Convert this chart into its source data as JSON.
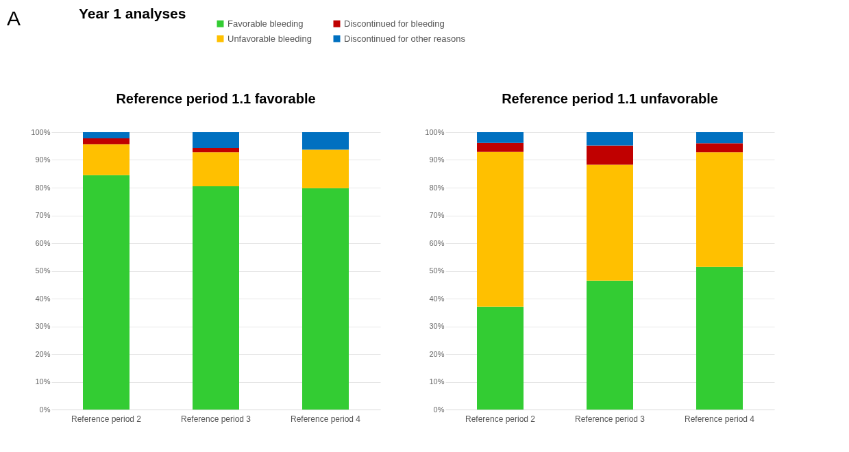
{
  "chart_data": [
    {
      "type": "bar",
      "title": "Reference period 1.1 favorable",
      "annotations": [
        "A",
        "Year 1 analyses"
      ],
      "stacked": true,
      "legend": "top",
      "grid": "y",
      "categories": [
        "Reference period 2",
        "Reference period 3",
        "Reference period 4"
      ],
      "ylim": [
        0,
        100
      ],
      "yticks": [
        {
          "value": 0,
          "label": "0%"
        },
        {
          "value": 10,
          "label": "10%"
        },
        {
          "value": 20,
          "label": "20%"
        },
        {
          "value": 30,
          "label": "30%"
        },
        {
          "value": 40,
          "label": "40%"
        },
        {
          "value": 50,
          "label": "50%"
        },
        {
          "value": 60,
          "label": "60%"
        },
        {
          "value": 70,
          "label": "70%"
        },
        {
          "value": 80,
          "label": "80%"
        },
        {
          "value": 90,
          "label": "90%"
        },
        {
          "value": 100,
          "label": "100%"
        }
      ],
      "series": [
        {
          "name": "Favorable bleeding",
          "color": "#33cc33",
          "values": [
            84.5,
            80.5,
            79.8
          ]
        },
        {
          "name": "Unfavorable bleeding",
          "color": "#ffc000",
          "values": [
            11.2,
            12.3,
            13.9
          ]
        },
        {
          "name": "Discontinued for bleeding",
          "color": "#c00000",
          "values": [
            2.1,
            1.5,
            0
          ]
        },
        {
          "name": "Discontinued for other reasons",
          "color": "#0070c0",
          "values": [
            2.2,
            5.7,
            6.3
          ]
        }
      ]
    },
    {
      "type": "bar",
      "title": "Reference period 1.1 unfavorable",
      "stacked": true,
      "grid": "y",
      "categories": [
        "Reference period 2",
        "Reference period 3",
        "Reference period 4"
      ],
      "ylim": [
        0,
        100
      ],
      "yticks": [
        {
          "value": 0,
          "label": "0%"
        },
        {
          "value": 10,
          "label": "10%"
        },
        {
          "value": 20,
          "label": "20%"
        },
        {
          "value": 30,
          "label": "30%"
        },
        {
          "value": 40,
          "label": "40%"
        },
        {
          "value": 50,
          "label": "50%"
        },
        {
          "value": 60,
          "label": "60%"
        },
        {
          "value": 70,
          "label": "70%"
        },
        {
          "value": 80,
          "label": "80%"
        },
        {
          "value": 90,
          "label": "90%"
        },
        {
          "value": 100,
          "label": "100%"
        }
      ],
      "series": [
        {
          "color": "#33cc33",
          "values": [
            37.1,
            46.5,
            51.4
          ]
        },
        {
          "color": "#ffc000",
          "values": [
            55.8,
            41.8,
            41.4
          ]
        },
        {
          "color": "#c00000",
          "values": [
            3.2,
            6.9,
            3.2
          ]
        },
        {
          "color": "#0070c0",
          "values": [
            3.9,
            4.8,
            4.0
          ]
        }
      ]
    }
  ]
}
